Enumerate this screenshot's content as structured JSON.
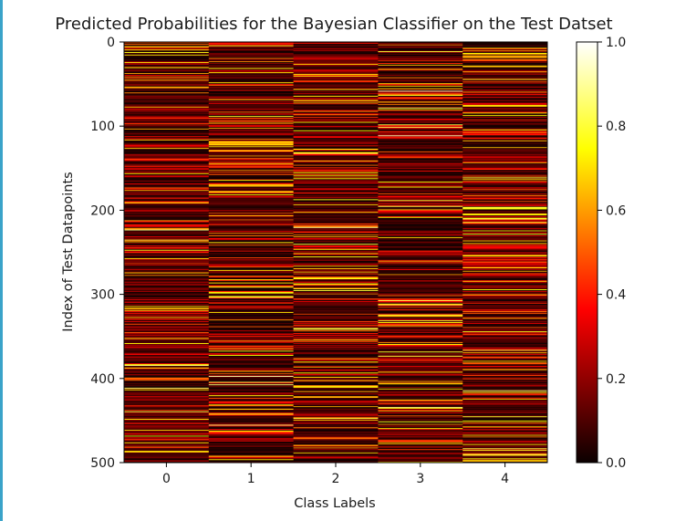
{
  "chart_data": {
    "type": "heatmap",
    "title": "Predicted Probabilities for the Bayesian Classifier on the Test Datset",
    "xlabel": "Class Labels",
    "ylabel": "Index of Test Datapoints",
    "x_categories": [
      "0",
      "1",
      "2",
      "3",
      "4"
    ],
    "y_range": [
      0,
      500
    ],
    "y_ticks": [
      "0",
      "100",
      "200",
      "300",
      "400",
      "500"
    ],
    "n_rows": 500,
    "colormap": "hot",
    "colorbar": {
      "range": [
        0.0,
        1.0
      ],
      "ticks": [
        "0.0",
        "0.2",
        "0.4",
        "0.6",
        "0.8",
        "1.0"
      ]
    },
    "values_note": "",
    "generator": {
      "seed": 20240517
    }
  }
}
